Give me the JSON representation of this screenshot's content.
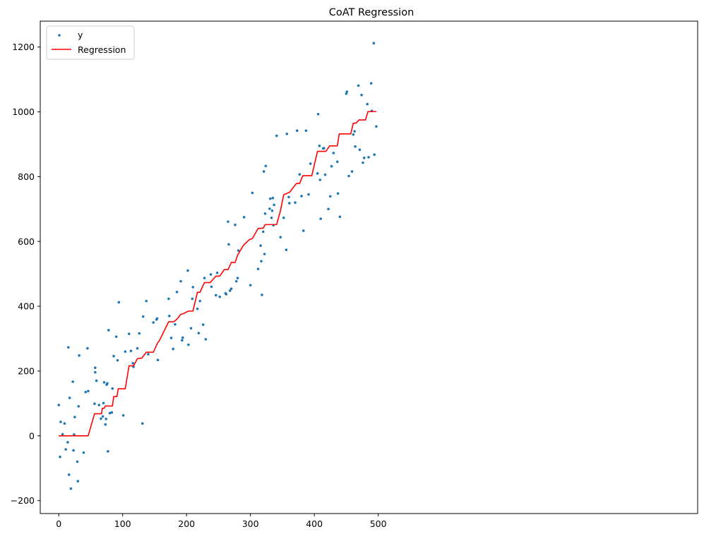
{
  "chart_data": {
    "type": "scatter",
    "title": "CoAT Regression",
    "xlabel": "",
    "ylabel": "",
    "xlim": [
      -29,
      1000
    ],
    "ylim": [
      -240,
      1280
    ],
    "xticks": [
      0,
      100,
      200,
      300,
      400,
      500
    ],
    "yticks": [
      -200,
      0,
      200,
      400,
      600,
      800,
      1000,
      1200
    ],
    "grid": false,
    "legend_position": "top-left",
    "series": [
      {
        "name": "y",
        "kind": "scatter",
        "color": "#1f77b4",
        "points": [
          [
            0,
            95
          ],
          [
            2,
            -65
          ],
          [
            3,
            43
          ],
          [
            6,
            5
          ],
          [
            9,
            38
          ],
          [
            11,
            -42
          ],
          [
            14,
            -20
          ],
          [
            15,
            273
          ],
          [
            16,
            -120
          ],
          [
            17,
            117
          ],
          [
            19,
            -163
          ],
          [
            22,
            167
          ],
          [
            23,
            -45
          ],
          [
            24,
            4
          ],
          [
            25,
            58
          ],
          [
            29,
            -80
          ],
          [
            30,
            -140
          ],
          [
            31,
            91
          ],
          [
            32,
            248
          ],
          [
            39,
            -52
          ],
          [
            42,
            135
          ],
          [
            45,
            270
          ],
          [
            46,
            138
          ],
          [
            56,
            99
          ],
          [
            57,
            210
          ],
          [
            57,
            196
          ],
          [
            59,
            170
          ],
          [
            63,
            95
          ],
          [
            66,
            53
          ],
          [
            69,
            60
          ],
          [
            70,
            101
          ],
          [
            71,
            165
          ],
          [
            73,
            35
          ],
          [
            74,
            52
          ],
          [
            75,
            158
          ],
          [
            76,
            162
          ],
          [
            77,
            -48
          ],
          [
            78,
            326
          ],
          [
            80,
            70
          ],
          [
            83,
            72
          ],
          [
            84,
            146
          ],
          [
            86,
            246
          ],
          [
            90,
            306
          ],
          [
            92,
            233
          ],
          [
            94,
            412
          ],
          [
            101,
            63
          ],
          [
            104,
            260
          ],
          [
            110,
            315
          ],
          [
            113,
            262
          ],
          [
            116,
            224
          ],
          [
            117,
            213
          ],
          [
            123,
            270
          ],
          [
            126,
            316
          ],
          [
            131,
            38
          ],
          [
            132,
            368
          ],
          [
            137,
            416
          ],
          [
            140,
            252
          ],
          [
            148,
            350
          ],
          [
            153,
            359
          ],
          [
            154,
            362
          ],
          [
            155,
            234
          ],
          [
            172,
            423
          ],
          [
            173,
            370
          ],
          [
            176,
            302
          ],
          [
            179,
            268
          ],
          [
            182,
            344
          ],
          [
            185,
            444
          ],
          [
            191,
            477
          ],
          [
            193,
            295
          ],
          [
            194,
            303
          ],
          [
            202,
            510
          ],
          [
            203,
            281
          ],
          [
            207,
            332
          ],
          [
            209,
            423
          ],
          [
            210,
            459
          ],
          [
            217,
            392
          ],
          [
            219,
            317
          ],
          [
            221,
            416
          ],
          [
            226,
            343
          ],
          [
            228,
            487
          ],
          [
            230,
            298
          ],
          [
            238,
            498
          ],
          [
            239,
            460
          ],
          [
            246,
            434
          ],
          [
            248,
            503
          ],
          [
            252,
            429
          ],
          [
            261,
            440
          ],
          [
            262,
            437
          ],
          [
            265,
            661
          ],
          [
            266,
            591
          ],
          [
            268,
            448
          ],
          [
            270,
            454
          ],
          [
            276,
            651
          ],
          [
            278,
            477
          ],
          [
            280,
            487
          ],
          [
            281,
            572
          ],
          [
            290,
            675
          ],
          [
            300,
            465
          ],
          [
            303,
            750
          ],
          [
            312,
            515
          ],
          [
            316,
            587
          ],
          [
            317,
            539
          ],
          [
            318,
            435
          ],
          [
            320,
            630
          ],
          [
            321,
            816
          ],
          [
            322,
            561
          ],
          [
            323,
            686
          ],
          [
            324,
            833
          ],
          [
            330,
            701
          ],
          [
            331,
            732
          ],
          [
            333,
            673
          ],
          [
            334,
            695
          ],
          [
            335,
            734
          ],
          [
            336,
            650
          ],
          [
            337,
            713
          ],
          [
            341,
            926
          ],
          [
            347,
            613
          ],
          [
            352,
            673
          ],
          [
            356,
            574
          ],
          [
            357,
            932
          ],
          [
            360,
            737
          ],
          [
            361,
            718
          ],
          [
            370,
            720
          ],
          [
            373,
            942
          ],
          [
            377,
            807
          ],
          [
            380,
            740
          ],
          [
            383,
            633
          ],
          [
            387,
            942
          ],
          [
            391,
            745
          ],
          [
            394,
            840
          ],
          [
            405,
            810
          ],
          [
            406,
            993
          ],
          [
            408,
            895
          ],
          [
            409,
            790
          ],
          [
            410,
            670
          ],
          [
            414,
            887
          ],
          [
            415,
            888
          ],
          [
            417,
            806
          ],
          [
            422,
            700
          ],
          [
            425,
            739
          ],
          [
            427,
            832
          ],
          [
            430,
            873
          ],
          [
            436,
            846
          ],
          [
            437,
            748
          ],
          [
            440,
            676
          ],
          [
            450,
            1056
          ],
          [
            451,
            1062
          ],
          [
            454,
            802
          ],
          [
            459,
            816
          ],
          [
            461,
            930
          ],
          [
            463,
            940
          ],
          [
            464,
            893
          ],
          [
            469,
            1081
          ],
          [
            471,
            883
          ],
          [
            474,
            1052
          ],
          [
            476,
            843
          ],
          [
            478,
            858
          ],
          [
            483,
            1024
          ],
          [
            485,
            860
          ],
          [
            489,
            1088
          ],
          [
            490,
            1003
          ],
          [
            493,
            1212
          ],
          [
            494,
            868
          ],
          [
            497,
            955
          ]
        ]
      },
      {
        "name": "Regression",
        "kind": "line",
        "color": "#ff0000",
        "points": [
          [
            0,
            0
          ],
          [
            46,
            0
          ],
          [
            56,
            68
          ],
          [
            67,
            68
          ],
          [
            68,
            85
          ],
          [
            71,
            85
          ],
          [
            73,
            92
          ],
          [
            84,
            92
          ],
          [
            86,
            121
          ],
          [
            91,
            121
          ],
          [
            93,
            145
          ],
          [
            104,
            145
          ],
          [
            110,
            216
          ],
          [
            117,
            216
          ],
          [
            123,
            238
          ],
          [
            130,
            240
          ],
          [
            137,
            258
          ],
          [
            148,
            258
          ],
          [
            155,
            288
          ],
          [
            157,
            292
          ],
          [
            172,
            352
          ],
          [
            180,
            352
          ],
          [
            185,
            360
          ],
          [
            191,
            375
          ],
          [
            196,
            378
          ],
          [
            203,
            385
          ],
          [
            210,
            385
          ],
          [
            217,
            443
          ],
          [
            221,
            443
          ],
          [
            228,
            473
          ],
          [
            237,
            473
          ],
          [
            246,
            493
          ],
          [
            252,
            493
          ],
          [
            259,
            513
          ],
          [
            265,
            513
          ],
          [
            270,
            535
          ],
          [
            276,
            535
          ],
          [
            280,
            558
          ],
          [
            289,
            588
          ],
          [
            298,
            605
          ],
          [
            303,
            609
          ],
          [
            312,
            640
          ],
          [
            320,
            641
          ],
          [
            323,
            652
          ],
          [
            341,
            652
          ],
          [
            347,
            695
          ],
          [
            352,
            744
          ],
          [
            357,
            748
          ],
          [
            362,
            753
          ],
          [
            366,
            764
          ],
          [
            372,
            779
          ],
          [
            377,
            779
          ],
          [
            382,
            803
          ],
          [
            396,
            803
          ],
          [
            405,
            878
          ],
          [
            418,
            878
          ],
          [
            424,
            895
          ],
          [
            436,
            895
          ],
          [
            439,
            932
          ],
          [
            457,
            932
          ],
          [
            461,
            965
          ],
          [
            465,
            965
          ],
          [
            470,
            975
          ],
          [
            480,
            975
          ],
          [
            484,
            1001
          ],
          [
            497,
            1001
          ]
        ]
      }
    ]
  }
}
